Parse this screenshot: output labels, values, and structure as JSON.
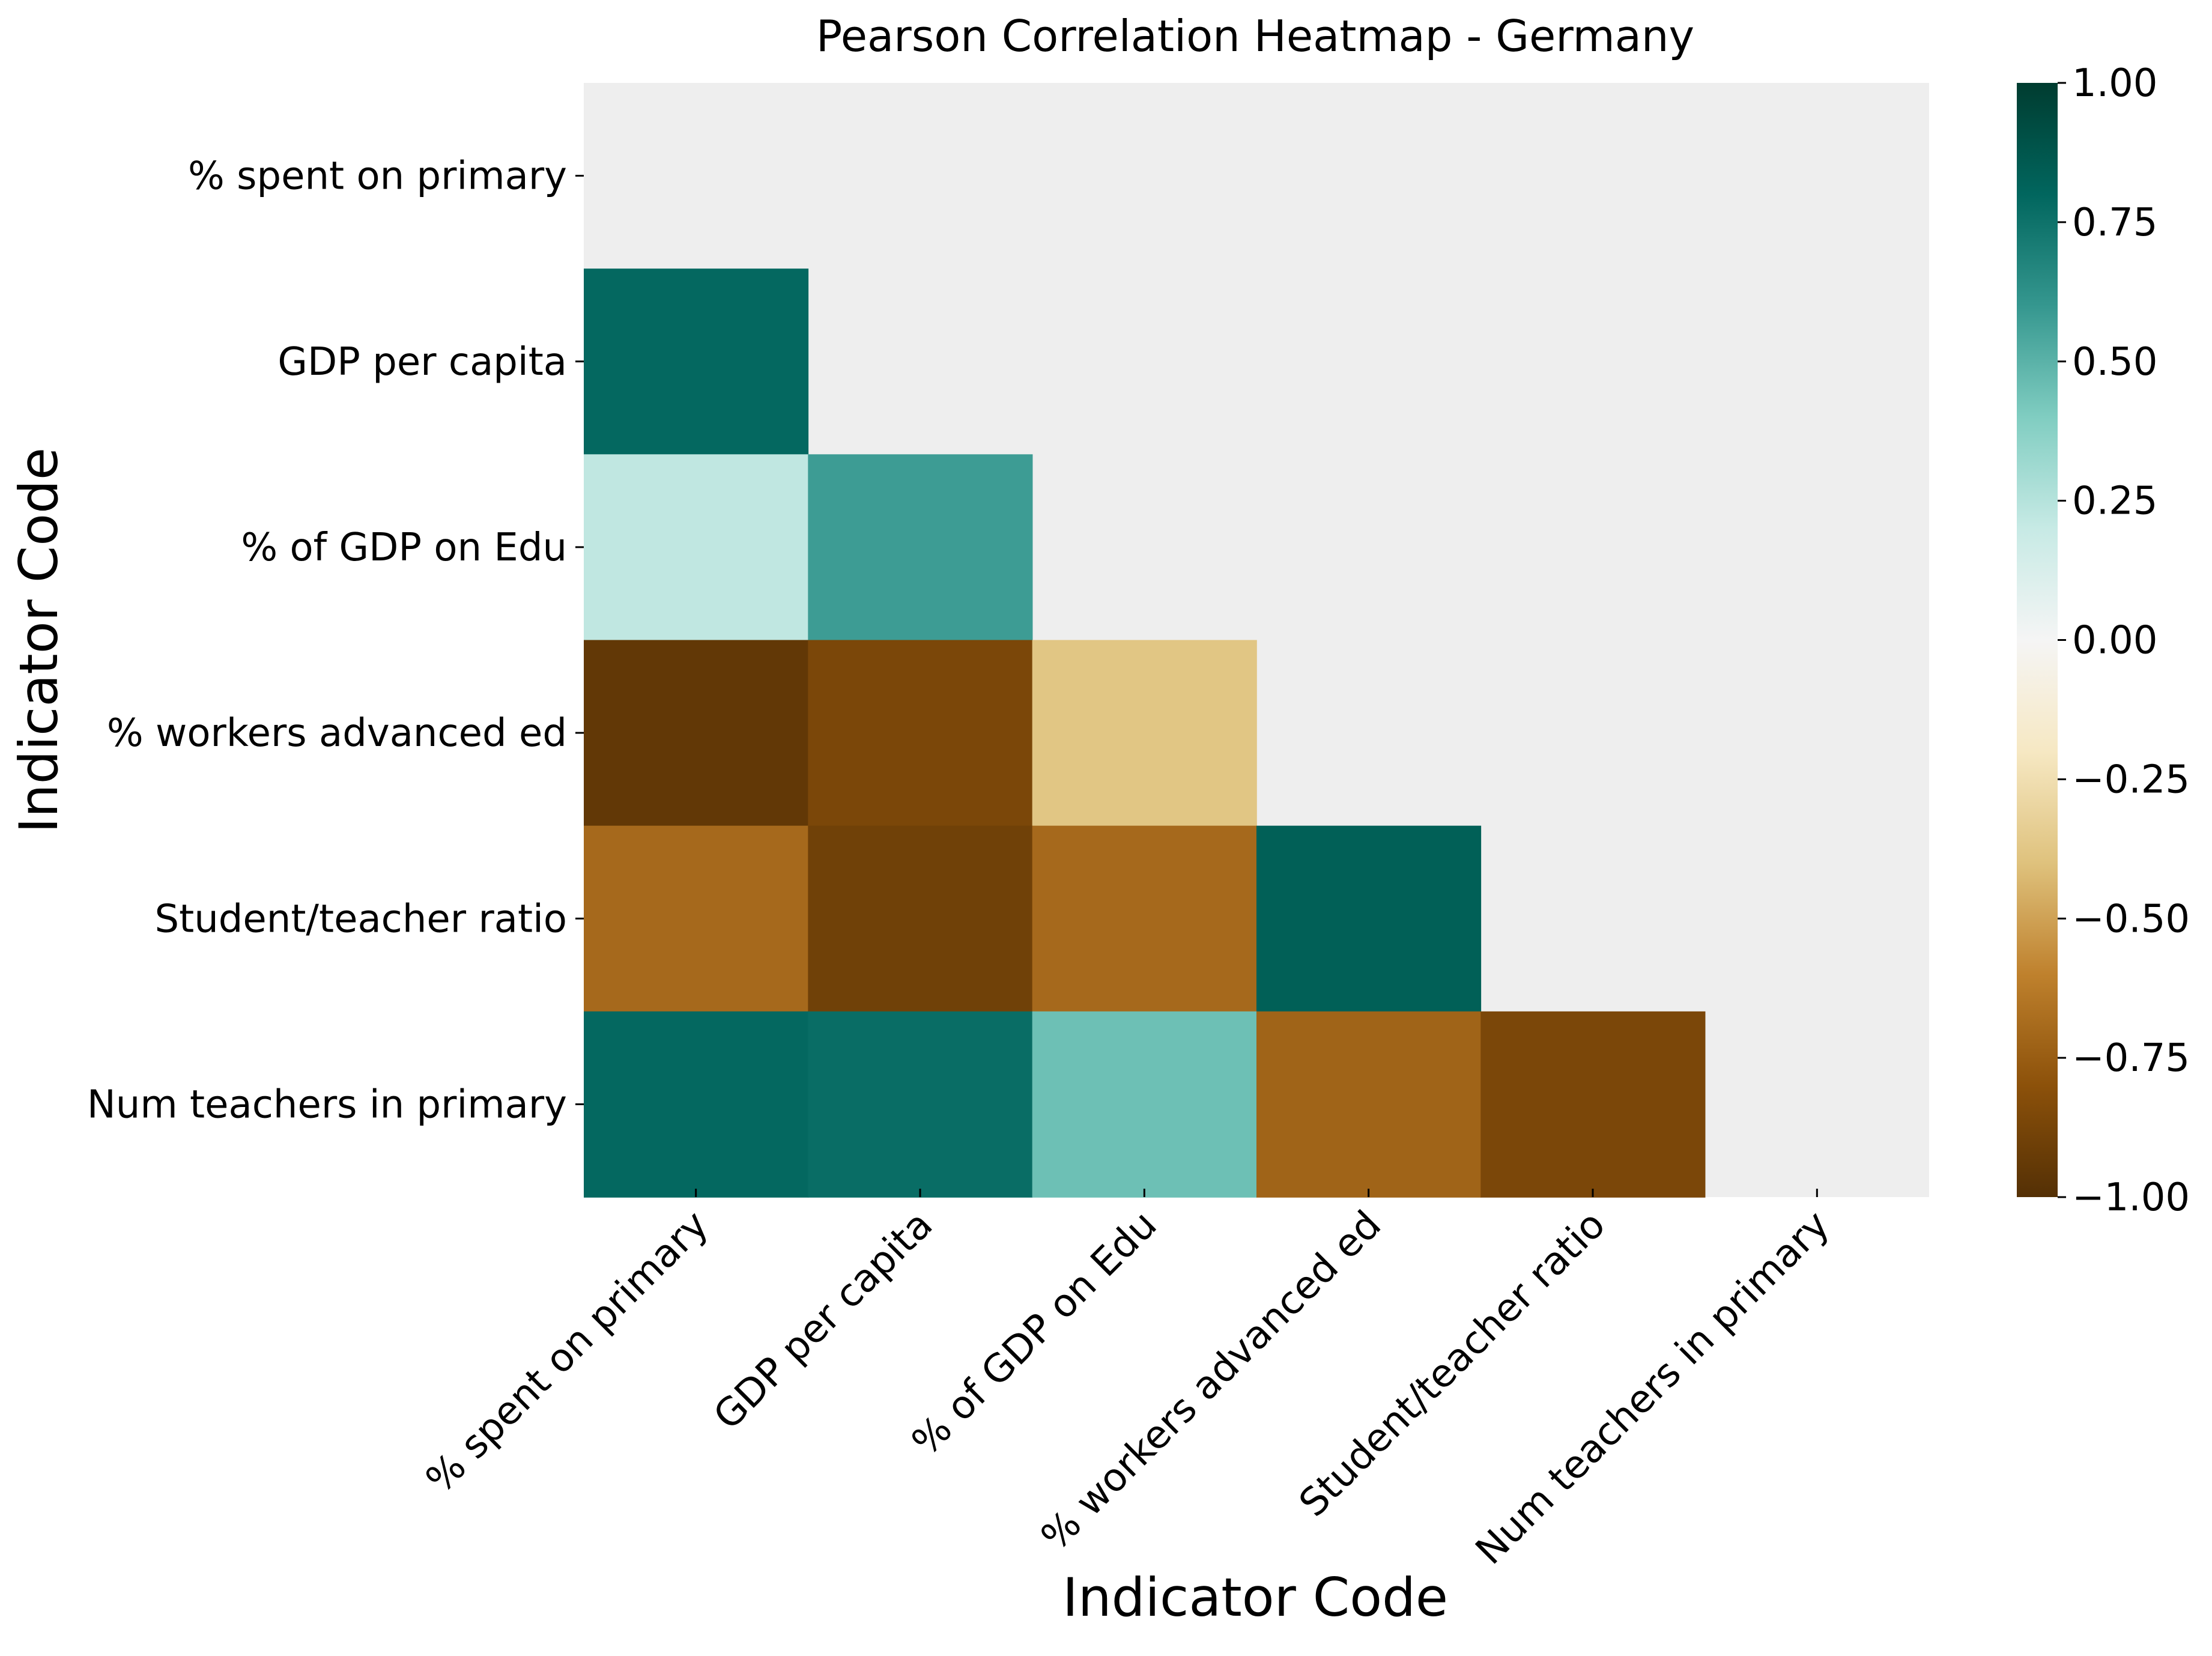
{
  "chart_data": {
    "type": "heatmap",
    "title": "Pearson Correlation Heatmap - Germany",
    "xlabel": "Indicator Code",
    "ylabel": "Indicator Code",
    "categories": [
      "% spent on primary",
      "GDP per capita",
      "% of GDP on Edu",
      "% workers advanced ed",
      "Student/teacher ratio",
      "Num teachers in primary"
    ],
    "mask": "upper-triangle-including-diagonal",
    "matrix": [
      [
        null,
        null,
        null,
        null,
        null,
        null
      ],
      [
        0.79,
        null,
        null,
        null,
        null,
        null
      ],
      [
        0.22,
        0.58,
        null,
        null,
        null,
        null
      ],
      [
        -0.95,
        -0.86,
        -0.38,
        null,
        null,
        null
      ],
      [
        -0.7,
        -0.9,
        -0.7,
        0.83,
        null,
        null
      ],
      [
        0.79,
        0.77,
        0.45,
        -0.72,
        -0.86,
        null
      ]
    ],
    "colorbar": {
      "vmin": -1.0,
      "vmax": 1.0,
      "ticks": [
        1.0,
        0.75,
        0.5,
        0.25,
        0.0,
        -0.25,
        -0.5,
        -0.75,
        -1.0
      ],
      "tick_labels": [
        "1.00",
        "0.75",
        "0.50",
        "0.25",
        "0.00",
        "−0.25",
        "−0.50",
        "−0.75",
        "−1.00"
      ],
      "colormap": "BrBG"
    },
    "colors": {
      "masked_background": "#eeeeee"
    },
    "grid": false,
    "legend": "colorbar-right"
  }
}
